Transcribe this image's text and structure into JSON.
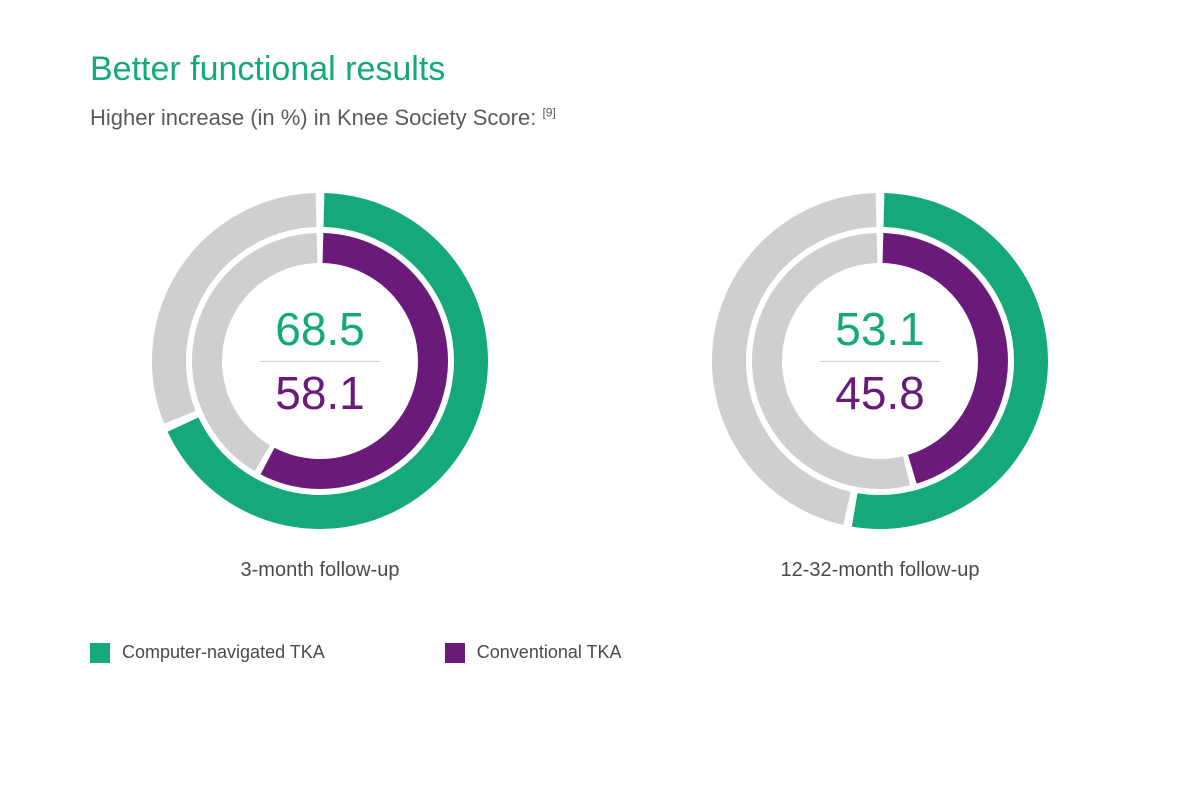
{
  "title": {
    "text": "Better functional results",
    "color": "#14a87a",
    "fontsize": 34
  },
  "subtitle": {
    "text": "Higher increase (in %) in Knee Society Score:",
    "ref": "[9]",
    "color": "#5a5a5a",
    "fontsize": 22
  },
  "colors": {
    "primary": "#14a87a",
    "secondary": "#6a1b7a",
    "track": "#cfcfcf",
    "background": "#ffffff",
    "text": "#4a4a4a",
    "divider": "#cfcfcf"
  },
  "donut_style": {
    "size": 340,
    "outer_stroke": 34,
    "inner_stroke": 30,
    "gap": 6,
    "start_angle_deg": 0,
    "gap_angle_deg": 3
  },
  "charts": [
    {
      "caption": "3-month follow-up",
      "outer": {
        "value": 68.5,
        "color": "#14a87a"
      },
      "inner": {
        "value": 58.1,
        "color": "#6a1b7a"
      },
      "center_top": {
        "text": "68.5",
        "color": "#14a87a",
        "fontsize": 46
      },
      "center_bottom": {
        "text": "58.1",
        "color": "#6a1b7a",
        "fontsize": 46
      }
    },
    {
      "caption": "12-32-month follow-up",
      "outer": {
        "value": 53.1,
        "color": "#14a87a"
      },
      "inner": {
        "value": 45.8,
        "color": "#6a1b7a"
      },
      "center_top": {
        "text": "53.1",
        "color": "#14a87a",
        "fontsize": 46
      },
      "center_bottom": {
        "text": "45.8",
        "color": "#6a1b7a",
        "fontsize": 46
      }
    }
  ],
  "legend": [
    {
      "label": "Computer-navigated TKA",
      "color": "#14a87a"
    },
    {
      "label": "Conventional TKA",
      "color": "#6a1b7a"
    }
  ]
}
